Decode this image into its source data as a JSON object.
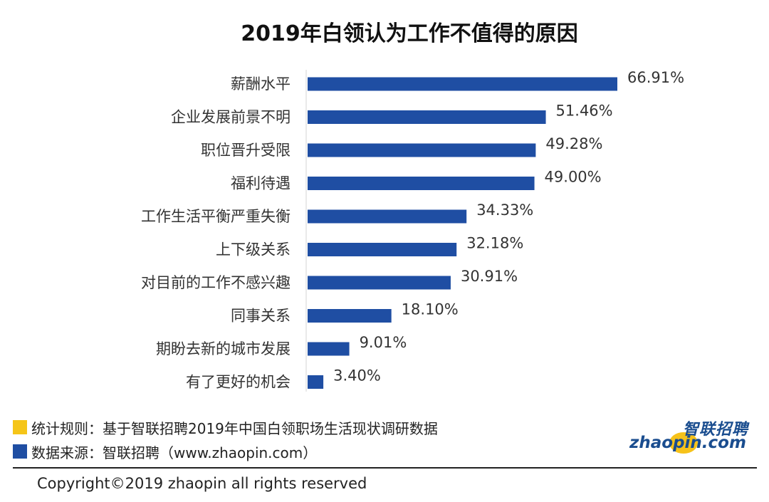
{
  "chart_data": {
    "type": "bar",
    "orientation": "horizontal",
    "title": "2019年白领认为工作不值得的原因",
    "categories": [
      "薪酬水平",
      "企业发展前景不明",
      "职位晋升受限",
      "福利待遇",
      "工作生活平衡严重失衡",
      "上下级关系",
      "对目前的工作不感兴趣",
      "同事关系",
      "期盼去新的城市发展",
      "有了更好的机会"
    ],
    "values": [
      66.91,
      51.46,
      49.28,
      49.0,
      34.33,
      32.18,
      30.91,
      18.1,
      9.01,
      3.4
    ],
    "value_labels": [
      "66.91%",
      "51.46%",
      "49.28%",
      "49.00%",
      "34.33%",
      "32.18%",
      "30.91%",
      "18.10%",
      "9.01%",
      "3.40%"
    ],
    "xlim": [
      0,
      70
    ],
    "xlabel": "",
    "ylabel": "",
    "grid": false,
    "bar_color": "#1f4ea3"
  },
  "legend": {
    "rule": {
      "text": "统计规则：基于智联招聘2019年中国白领职场生活现状调研数据",
      "color": "#f5c518"
    },
    "source": {
      "text": "数据来源：智联招聘（www.zhaopin.com）",
      "color": "#1f4ea3"
    }
  },
  "logo": {
    "cn": "智联招聘",
    "en": "zhaopin.com"
  },
  "footer": {
    "copyright": "Copyright©2019 zhaopin all rights reserved"
  }
}
